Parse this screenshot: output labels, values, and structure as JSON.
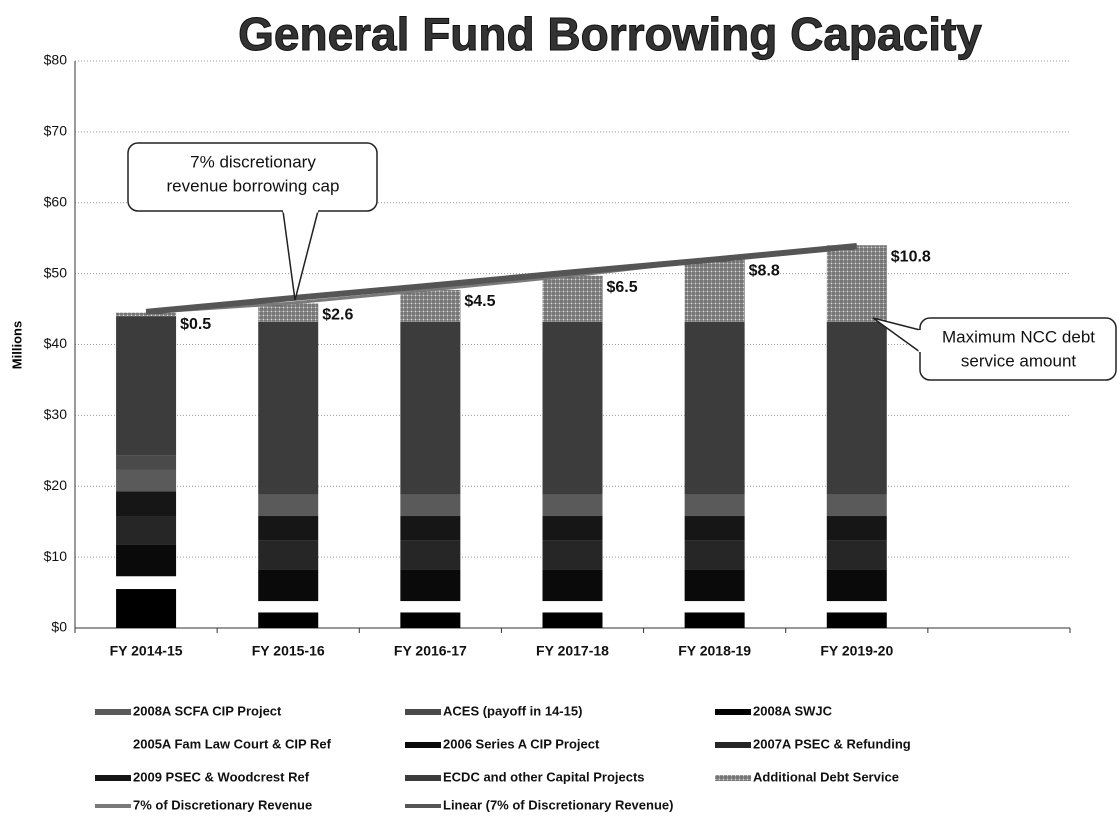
{
  "chart_data": {
    "type": "bar",
    "stacked": true,
    "title": "General Fund Borrowing Capacity",
    "y_label": "Millions",
    "categories": [
      "FY 2014-15",
      "FY 2015-16",
      "FY 2016-17",
      "FY 2017-18",
      "FY 2018-19",
      "FY 2019-20"
    ],
    "ylim": [
      0,
      80
    ],
    "yticks": [
      {
        "value": 0,
        "label": "$0"
      },
      {
        "value": 10,
        "label": "$10"
      },
      {
        "value": 20,
        "label": "$20"
      },
      {
        "value": 30,
        "label": "$30"
      },
      {
        "value": 40,
        "label": "$40"
      },
      {
        "value": 50,
        "label": "$50"
      },
      {
        "value": 60,
        "label": "$60"
      },
      {
        "value": 70,
        "label": "$70"
      },
      {
        "value": 80,
        "label": "$80"
      }
    ],
    "grid": true,
    "series": [
      {
        "name": "2008A SCFA CIP Project",
        "color": "#5a5a5a",
        "values": [
          3,
          3,
          3,
          3,
          3,
          3
        ]
      },
      {
        "name": "ACES (payoff in 14-15)",
        "color": "#4a4a4a",
        "values": [
          2,
          0,
          0,
          0,
          0,
          0
        ]
      },
      {
        "name": "2008A  SWJC",
        "color": "#000000",
        "values": [
          5.5,
          2.2,
          2.2,
          2.2,
          2.2,
          2.2
        ]
      },
      {
        "name": "2005A Fam Law Court & CIP Ref",
        "color": "#ffffff",
        "values": [
          1.8,
          1.6,
          1.6,
          1.6,
          1.6,
          1.6
        ]
      },
      {
        "name": "2006 Series A CIP Project",
        "color": "#0a0a0a",
        "values": [
          4.5,
          4.5,
          4.5,
          4.5,
          4.5,
          4.5
        ]
      },
      {
        "name": "2007A PSEC & Refunding",
        "color": "#262626",
        "values": [
          4,
          4,
          4,
          4,
          4,
          4
        ]
      },
      {
        "name": "2009 PSEC & Woodcrest Ref",
        "color": "#161616",
        "values": [
          3.5,
          3.5,
          3.5,
          3.5,
          3.5,
          3.5
        ]
      },
      {
        "name": "ECDC and other Capital Projects",
        "color": "#3c3c3c",
        "values": [
          19.7,
          24.4,
          24.4,
          24.4,
          24.4,
          24.4
        ]
      },
      {
        "name": "Additional Debt Service",
        "color": "#8a8a8a",
        "values": [
          0.5,
          2.6,
          4.5,
          6.5,
          8.8,
          10.8
        ],
        "value_labels": [
          "$0.5",
          "$2.6",
          "$4.5",
          "$6.5",
          "$8.8",
          "$10.8"
        ]
      },
      {
        "name": "7% of Discretionary Revenue",
        "color": "#7a7a7a",
        "type": "line",
        "values": [
          44.5,
          45.8,
          47.7,
          49.7,
          52.0,
          54.0
        ]
      },
      {
        "name": "Linear (7% of Discretionary Revenue)",
        "color": "#555555",
        "type": "line",
        "values": [
          44.6,
          46.5,
          48.3,
          50.2,
          52.0,
          53.9
        ]
      }
    ],
    "stack_order": [
      2,
      3,
      4,
      5,
      6,
      0,
      1,
      7,
      8
    ],
    "annotations": [
      {
        "lines": [
          "7% discretionary",
          "revenue  borrowing cap"
        ]
      },
      {
        "lines": [
          "Maximum NCC debt",
          "service amount"
        ]
      }
    ]
  }
}
